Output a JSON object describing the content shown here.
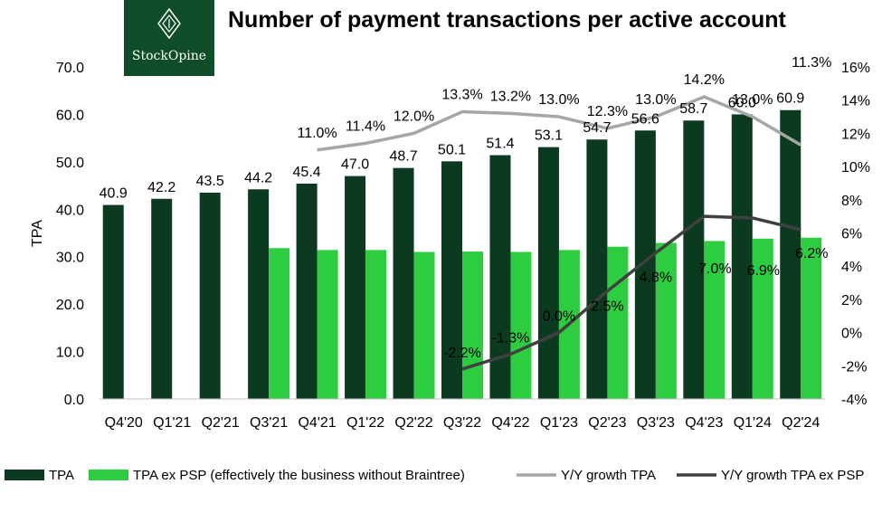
{
  "logo": {
    "brand": "StockOpine"
  },
  "chart_data": {
    "type": "bar",
    "title": "Number of payment transactions per active account",
    "ylabel": "TPA",
    "ylim": [
      0,
      70
    ],
    "y2lim": [
      -4,
      16
    ],
    "yticks": [
      "0.0",
      "10.0",
      "20.0",
      "30.0",
      "40.0",
      "50.0",
      "60.0",
      "70.0"
    ],
    "y2ticks": [
      "-4%",
      "-2%",
      "0%",
      "2%",
      "4%",
      "6%",
      "8%",
      "10%",
      "12%",
      "14%",
      "16%"
    ],
    "categories": [
      "Q4'20",
      "Q1'21",
      "Q2'21",
      "Q3'21",
      "Q4'21",
      "Q1'22",
      "Q2'22",
      "Q3'22",
      "Q4'22",
      "Q1'23",
      "Q2'23",
      "Q3'23",
      "Q4'23",
      "Q1'24",
      "Q2'24"
    ],
    "series": [
      {
        "name": "TPA",
        "type": "bar",
        "color": "#0b3a20",
        "values": [
          40.9,
          42.2,
          43.5,
          44.2,
          45.4,
          47.0,
          48.7,
          50.1,
          51.4,
          53.1,
          54.7,
          56.6,
          58.7,
          60.0,
          60.9
        ],
        "labels": [
          "40.9",
          "42.2",
          "43.5",
          "44.2",
          "45.4",
          "47.0",
          "48.7",
          "50.1",
          "51.4",
          "53.1",
          "54.7",
          "56.6",
          "58.7",
          "60.0",
          "60.9"
        ]
      },
      {
        "name": "TPA ex PSP (effectively the business without Braintree)",
        "type": "bar",
        "color": "#2ecc40",
        "values": [
          null,
          null,
          null,
          31.8,
          31.4,
          31.4,
          31.0,
          31.1,
          31.0,
          31.4,
          32.1,
          32.9,
          33.3,
          33.8,
          34.0
        ]
      },
      {
        "name": "Y/Y growth TPA",
        "type": "line",
        "axis": "right",
        "color": "#a6a6a6",
        "values": [
          null,
          null,
          null,
          null,
          11.0,
          11.4,
          12.0,
          13.3,
          13.2,
          13.0,
          12.3,
          13.0,
          14.2,
          13.0,
          11.3
        ],
        "labels": [
          null,
          null,
          null,
          null,
          "11.0%",
          "11.4%",
          "12.0%",
          "13.3%",
          "13.2%",
          "13.0%",
          "12.3%",
          "13.0%",
          "14.2%",
          "13.0%",
          "11.3%"
        ]
      },
      {
        "name": "Y/Y growth TPA ex PSP",
        "type": "line",
        "axis": "right",
        "color": "#404040",
        "values": [
          null,
          null,
          null,
          null,
          null,
          null,
          null,
          -2.2,
          -1.3,
          0.0,
          2.5,
          4.8,
          7.0,
          6.9,
          6.2
        ],
        "labels": [
          null,
          null,
          null,
          null,
          null,
          null,
          null,
          "-2.2%",
          "-1.3%",
          "0.0%",
          "2.5%",
          "4.8%",
          "7.0%",
          "6.9%",
          "6.2%"
        ]
      }
    ],
    "grid": false,
    "legend_position": "bottom"
  }
}
